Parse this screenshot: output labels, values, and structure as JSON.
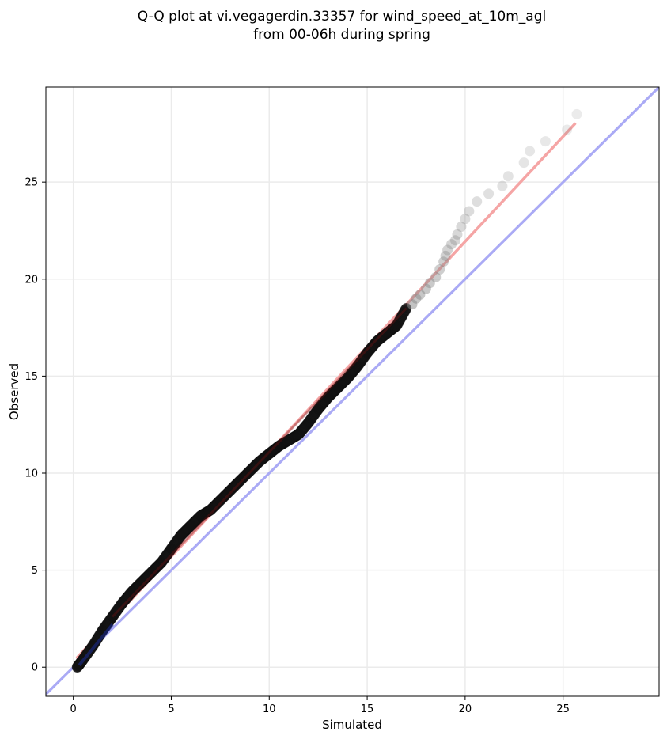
{
  "chart_data": {
    "type": "scatter",
    "title_lines": [
      "Q-Q plot at vi.vegagerdin.33357 for wind_speed_at_10m_agl",
      "from 00-06h during spring"
    ],
    "xlabel": "Simulated",
    "ylabel": "Observed",
    "xlim": [
      -1.4,
      29.9
    ],
    "ylim": [
      -1.5,
      29.9
    ],
    "xticks": [
      0,
      5,
      10,
      15,
      20,
      25
    ],
    "yticks": [
      0,
      5,
      10,
      15,
      20,
      25
    ],
    "grid": true,
    "reference_line": {
      "color": "#aaaaf5",
      "from": [
        -1.4,
        -1.4
      ],
      "to": [
        29.9,
        29.9
      ]
    },
    "fit_line": {
      "color": "#f5a5a5",
      "from": [
        0.2,
        0.5
      ],
      "to": [
        25.6,
        28.0
      ]
    },
    "dense_points": {
      "x": [
        0.2,
        0.5,
        1.0,
        1.5,
        2.0,
        2.5,
        3.0,
        3.5,
        4.0,
        4.5,
        5.0,
        5.5,
        6.0,
        6.5,
        7.0,
        7.5,
        8.0,
        8.5,
        9.0,
        9.5,
        10.0,
        10.5,
        11.0,
        11.5,
        12.0,
        12.5,
        13.0,
        13.5,
        14.0,
        14.5,
        15.0,
        15.5,
        16.0,
        16.5,
        17.0
      ],
      "y": [
        0.0,
        0.4,
        1.1,
        1.9,
        2.6,
        3.3,
        3.9,
        4.4,
        4.9,
        5.4,
        6.1,
        6.8,
        7.3,
        7.8,
        8.1,
        8.6,
        9.1,
        9.6,
        10.1,
        10.6,
        11.0,
        11.4,
        11.7,
        12.0,
        12.6,
        13.3,
        13.9,
        14.4,
        14.9,
        15.5,
        16.2,
        16.8,
        17.2,
        17.6,
        18.5
      ]
    },
    "tail_points": {
      "x": [
        17.3,
        17.5,
        17.7,
        18.0,
        18.2,
        18.5,
        18.7,
        18.9,
        19.0,
        19.1,
        19.3,
        19.5,
        19.6,
        19.8,
        20.0,
        20.2,
        20.6,
        21.2,
        21.9,
        22.2,
        23.0,
        23.3,
        24.1,
        25.2,
        25.7
      ],
      "y": [
        18.7,
        19.0,
        19.2,
        19.5,
        19.8,
        20.1,
        20.5,
        20.9,
        21.2,
        21.5,
        21.8,
        22.0,
        22.3,
        22.7,
        23.1,
        23.5,
        24.0,
        24.4,
        24.8,
        25.3,
        26.0,
        26.6,
        27.1,
        27.7,
        28.5
      ]
    }
  }
}
